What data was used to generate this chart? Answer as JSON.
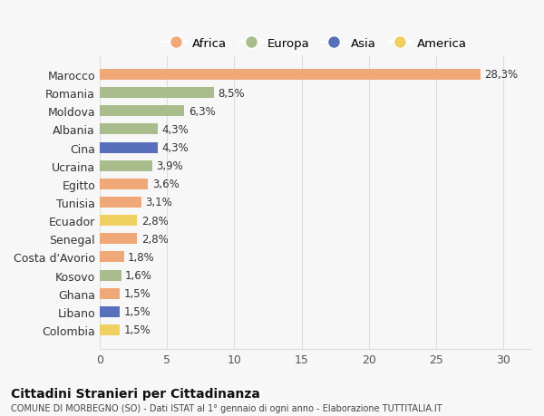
{
  "countries": [
    "Marocco",
    "Romania",
    "Moldova",
    "Albania",
    "Cina",
    "Ucraina",
    "Egitto",
    "Tunisia",
    "Ecuador",
    "Senegal",
    "Costa d'Avorio",
    "Kosovo",
    "Ghana",
    "Libano",
    "Colombia"
  ],
  "values": [
    28.3,
    8.5,
    6.3,
    4.3,
    4.3,
    3.9,
    3.6,
    3.1,
    2.8,
    2.8,
    1.8,
    1.6,
    1.5,
    1.5,
    1.5
  ],
  "labels": [
    "28,3%",
    "8,5%",
    "6,3%",
    "4,3%",
    "4,3%",
    "3,9%",
    "3,6%",
    "3,1%",
    "2,8%",
    "2,8%",
    "1,8%",
    "1,6%",
    "1,5%",
    "1,5%",
    "1,5%"
  ],
  "continents": [
    "Africa",
    "Europa",
    "Europa",
    "Europa",
    "Asia",
    "Europa",
    "Africa",
    "Africa",
    "America",
    "Africa",
    "Africa",
    "Europa",
    "Africa",
    "Asia",
    "America"
  ],
  "colors": {
    "Africa": "#F0A878",
    "Europa": "#A8BC8C",
    "Asia": "#5870BC",
    "America": "#F0D060"
  },
  "legend_labels": [
    "Africa",
    "Europa",
    "Asia",
    "America"
  ],
  "xlim": [
    0,
    32
  ],
  "xticks": [
    0,
    5,
    10,
    15,
    20,
    25,
    30
  ],
  "title": "Cittadini Stranieri per Cittadinanza",
  "subtitle": "COMUNE DI MORBEGNO (SO) - Dati ISTAT al 1° gennaio di ogni anno - Elaborazione TUTTITALIA.IT",
  "bg_color": "#f7f7f7",
  "grid_color": "#dddddd"
}
